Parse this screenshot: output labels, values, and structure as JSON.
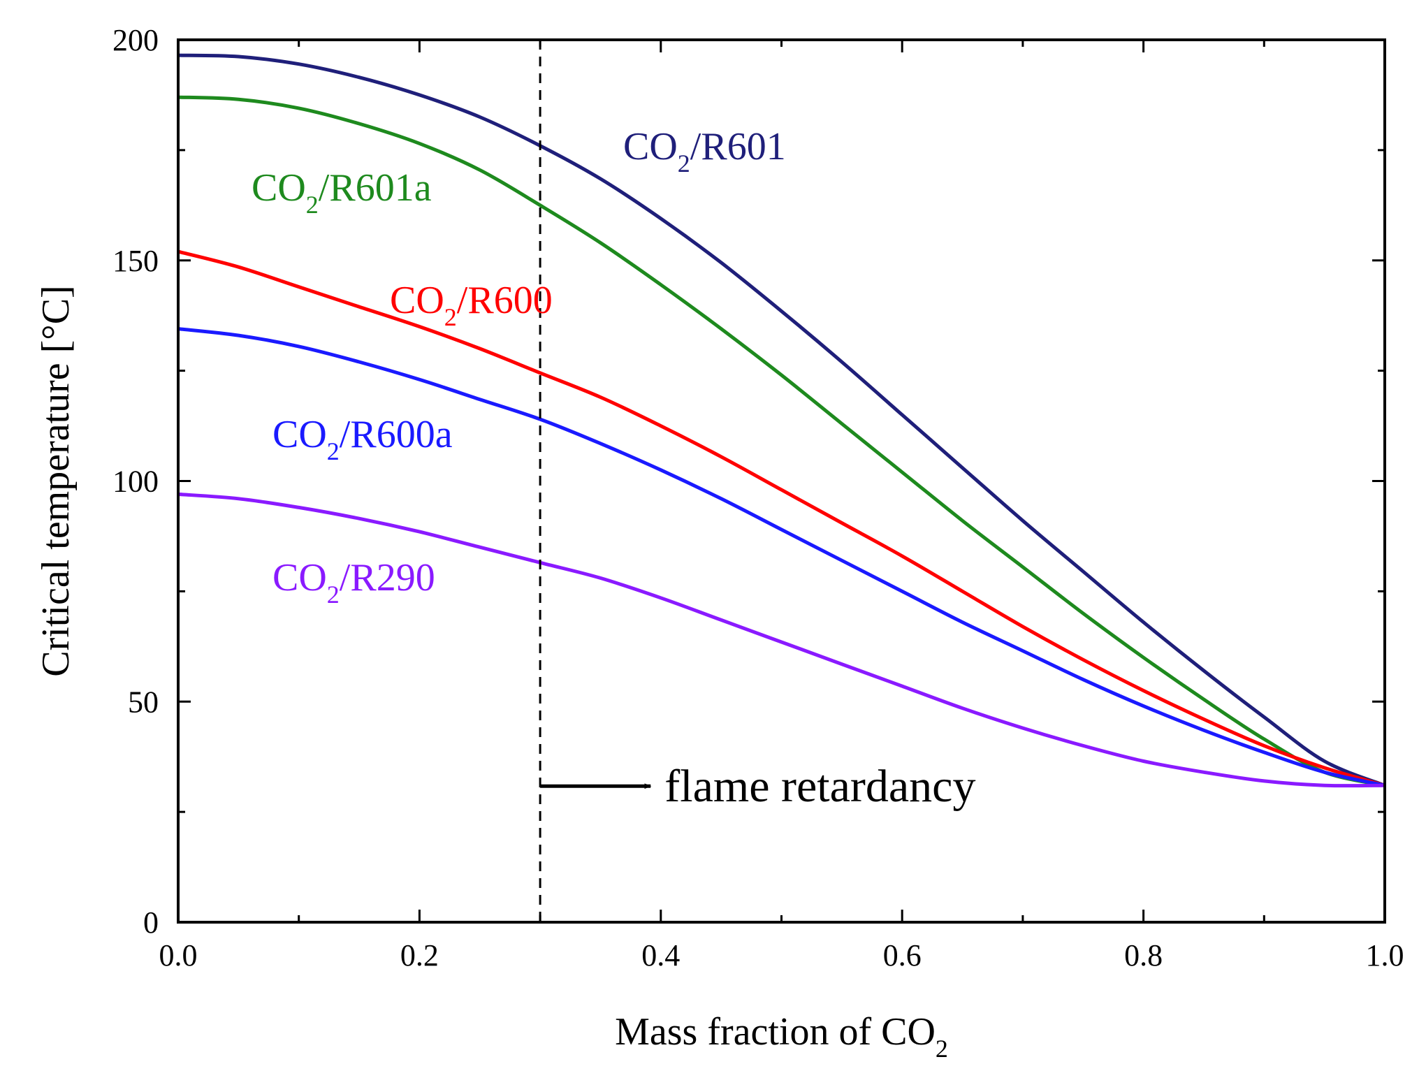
{
  "chart_data": {
    "type": "line",
    "title": "",
    "xlabel": "Mass fraction of CO",
    "xlabel_subscript": "2",
    "ylabel": "Critical temperature [°C]",
    "xlim": [
      0.0,
      1.0
    ],
    "ylim": [
      0,
      200
    ],
    "x_ticks": [
      "0.0",
      "0.2",
      "0.4",
      "0.6",
      "0.8",
      "1.0"
    ],
    "y_ticks": [
      "0",
      "50",
      "100",
      "150",
      "200"
    ],
    "grid": false,
    "series": [
      {
        "name": "CO2/R601",
        "label_main": "CO",
        "label_sub": "2",
        "label_rest": "/R601",
        "color": "#1f1f7a",
        "x": [
          0.0,
          0.05,
          0.1,
          0.15,
          0.2,
          0.25,
          0.3,
          0.35,
          0.4,
          0.45,
          0.5,
          0.55,
          0.6,
          0.65,
          0.7,
          0.75,
          0.8,
          0.85,
          0.9,
          0.95,
          1.0
        ],
        "values": [
          196.5,
          196.2,
          194.5,
          191.5,
          187.5,
          182.5,
          176,
          168.5,
          159.5,
          149.5,
          138.5,
          127,
          115,
          103,
          91,
          79.5,
          68,
          57,
          46.5,
          36.5,
          31
        ]
      },
      {
        "name": "CO2/R601a",
        "label_main": "CO",
        "label_sub": "2",
        "label_rest": "/R601a",
        "color": "#1e8a1e",
        "x": [
          0.0,
          0.05,
          0.1,
          0.15,
          0.2,
          0.25,
          0.3,
          0.35,
          0.4,
          0.45,
          0.5,
          0.55,
          0.6,
          0.65,
          0.7,
          0.75,
          0.8,
          0.85,
          0.9,
          0.95,
          1.0
        ],
        "values": [
          187,
          186.5,
          184.5,
          181,
          176.5,
          170.5,
          162.5,
          154,
          144.5,
          134.5,
          124,
          113,
          102,
          91,
          80.5,
          70,
          60,
          50.5,
          41.5,
          34,
          31
        ]
      },
      {
        "name": "CO2/R600",
        "label_main": "CO",
        "label_sub": "2",
        "label_rest": "/R600",
        "color": "#ff0000",
        "x": [
          0.0,
          0.05,
          0.1,
          0.15,
          0.2,
          0.25,
          0.3,
          0.35,
          0.4,
          0.45,
          0.5,
          0.55,
          0.6,
          0.65,
          0.7,
          0.75,
          0.8,
          0.85,
          0.9,
          0.95,
          1.0
        ],
        "values": [
          152,
          148.5,
          144,
          139.5,
          135,
          130,
          124.5,
          119,
          112.5,
          105.5,
          98,
          90.5,
          83,
          75,
          67,
          59.5,
          52.5,
          46,
          40,
          35,
          31
        ]
      },
      {
        "name": "CO2/R600a",
        "label_main": "CO",
        "label_sub": "2",
        "label_rest": "/R600a",
        "color": "#1a1aff",
        "x": [
          0.0,
          0.05,
          0.1,
          0.15,
          0.2,
          0.25,
          0.3,
          0.35,
          0.4,
          0.45,
          0.5,
          0.55,
          0.6,
          0.65,
          0.7,
          0.75,
          0.8,
          0.85,
          0.9,
          0.95,
          1.0
        ],
        "values": [
          134.5,
          133,
          130.5,
          127,
          123,
          118.5,
          114,
          108.5,
          102.5,
          96,
          89,
          82,
          75,
          68,
          61.5,
          55,
          49,
          43.5,
          38.5,
          34,
          31
        ]
      },
      {
        "name": "CO2/R290",
        "label_main": "CO",
        "label_sub": "2",
        "label_rest": "/R290",
        "color": "#8a1aff",
        "x": [
          0.0,
          0.05,
          0.1,
          0.15,
          0.2,
          0.25,
          0.3,
          0.35,
          0.4,
          0.45,
          0.5,
          0.55,
          0.6,
          0.65,
          0.7,
          0.75,
          0.8,
          0.85,
          0.9,
          0.95,
          1.0
        ],
        "values": [
          97,
          96,
          94,
          91.5,
          88.5,
          85,
          81.5,
          78,
          73.5,
          68.5,
          63.5,
          58.5,
          53.5,
          48.5,
          44,
          40,
          36.5,
          34,
          32,
          31,
          31
        ]
      }
    ],
    "annotations": [
      {
        "type": "vline",
        "x": 0.3,
        "style": "dashed"
      },
      {
        "type": "arrow_text",
        "text": "flame retardancy",
        "x_from": 0.3,
        "x_to": 0.38,
        "y": 31
      }
    ]
  }
}
